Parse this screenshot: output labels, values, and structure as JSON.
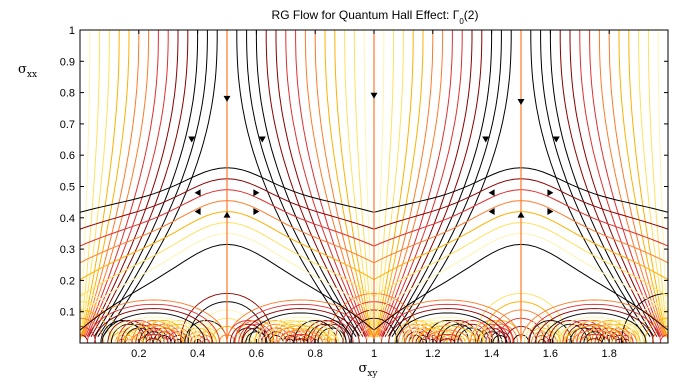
{
  "chart_data": {
    "type": "line",
    "title": {
      "prefix": "RG Flow for Quantum Hall Effect: ",
      "gamma": "Γ",
      "sub": "0",
      "suffix": "(2)"
    },
    "xlabel": {
      "main": "σ",
      "sub": "xy"
    },
    "ylabel": {
      "main": "σ",
      "sub": "xx"
    },
    "xlim": [
      0,
      2
    ],
    "ylim": [
      0,
      1
    ],
    "xticks": [
      {
        "value": 0.2,
        "label": "0.2"
      },
      {
        "value": 0.4,
        "label": "0.4"
      },
      {
        "value": 0.6,
        "label": "0.6"
      },
      {
        "value": 0.8,
        "label": "0.8"
      },
      {
        "value": 1.0,
        "label": "1"
      },
      {
        "value": 1.2,
        "label": "1.2"
      },
      {
        "value": 1.4,
        "label": "1.4"
      },
      {
        "value": 1.6,
        "label": "1.6"
      },
      {
        "value": 1.8,
        "label": "1.8"
      }
    ],
    "yticks": [
      {
        "value": 0.1,
        "label": "0.1"
      },
      {
        "value": 0.2,
        "label": "0.2"
      },
      {
        "value": 0.3,
        "label": "0.3"
      },
      {
        "value": 0.4,
        "label": "0.4"
      },
      {
        "value": 0.5,
        "label": "0.5"
      },
      {
        "value": 0.6,
        "label": "0.6"
      },
      {
        "value": 0.7,
        "label": "0.7"
      },
      {
        "value": 0.8,
        "label": "0.8"
      },
      {
        "value": 0.9,
        "label": "0.9"
      },
      {
        "value": 1.0,
        "label": "1"
      }
    ],
    "grid": false,
    "colormap": [
      "#000000",
      "#8b0000",
      "#e03030",
      "#ff7a2a",
      "#ffb000",
      "#ffe060",
      "#fff4b0"
    ],
    "fixed_points": [
      {
        "x": 0.5,
        "y": 0.5
      },
      {
        "x": 1.5,
        "y": 0.5
      }
    ],
    "separatrices_x": [
      0.5,
      1.0,
      1.5
    ],
    "arrows": [
      {
        "x": 0.5,
        "y": 0.78,
        "direction": "down"
      },
      {
        "x": 0.5,
        "y": 0.41,
        "direction": "up"
      },
      {
        "x": 0.4,
        "y": 0.48,
        "direction": "left"
      },
      {
        "x": 0.6,
        "y": 0.48,
        "direction": "right"
      },
      {
        "x": 0.4,
        "y": 0.42,
        "direction": "left"
      },
      {
        "x": 0.6,
        "y": 0.42,
        "direction": "right"
      },
      {
        "x": 0.38,
        "y": 0.65,
        "direction": "down"
      },
      {
        "x": 0.62,
        "y": 0.65,
        "direction": "down"
      },
      {
        "x": 1.0,
        "y": 0.79,
        "direction": "down"
      },
      {
        "x": 1.5,
        "y": 0.77,
        "direction": "down"
      },
      {
        "x": 1.5,
        "y": 0.41,
        "direction": "up"
      },
      {
        "x": 1.4,
        "y": 0.48,
        "direction": "left"
      },
      {
        "x": 1.6,
        "y": 0.48,
        "direction": "right"
      },
      {
        "x": 1.4,
        "y": 0.42,
        "direction": "left"
      },
      {
        "x": 1.6,
        "y": 0.42,
        "direction": "right"
      },
      {
        "x": 1.38,
        "y": 0.65,
        "direction": "down"
      },
      {
        "x": 1.62,
        "y": 0.65,
        "direction": "down"
      }
    ]
  }
}
